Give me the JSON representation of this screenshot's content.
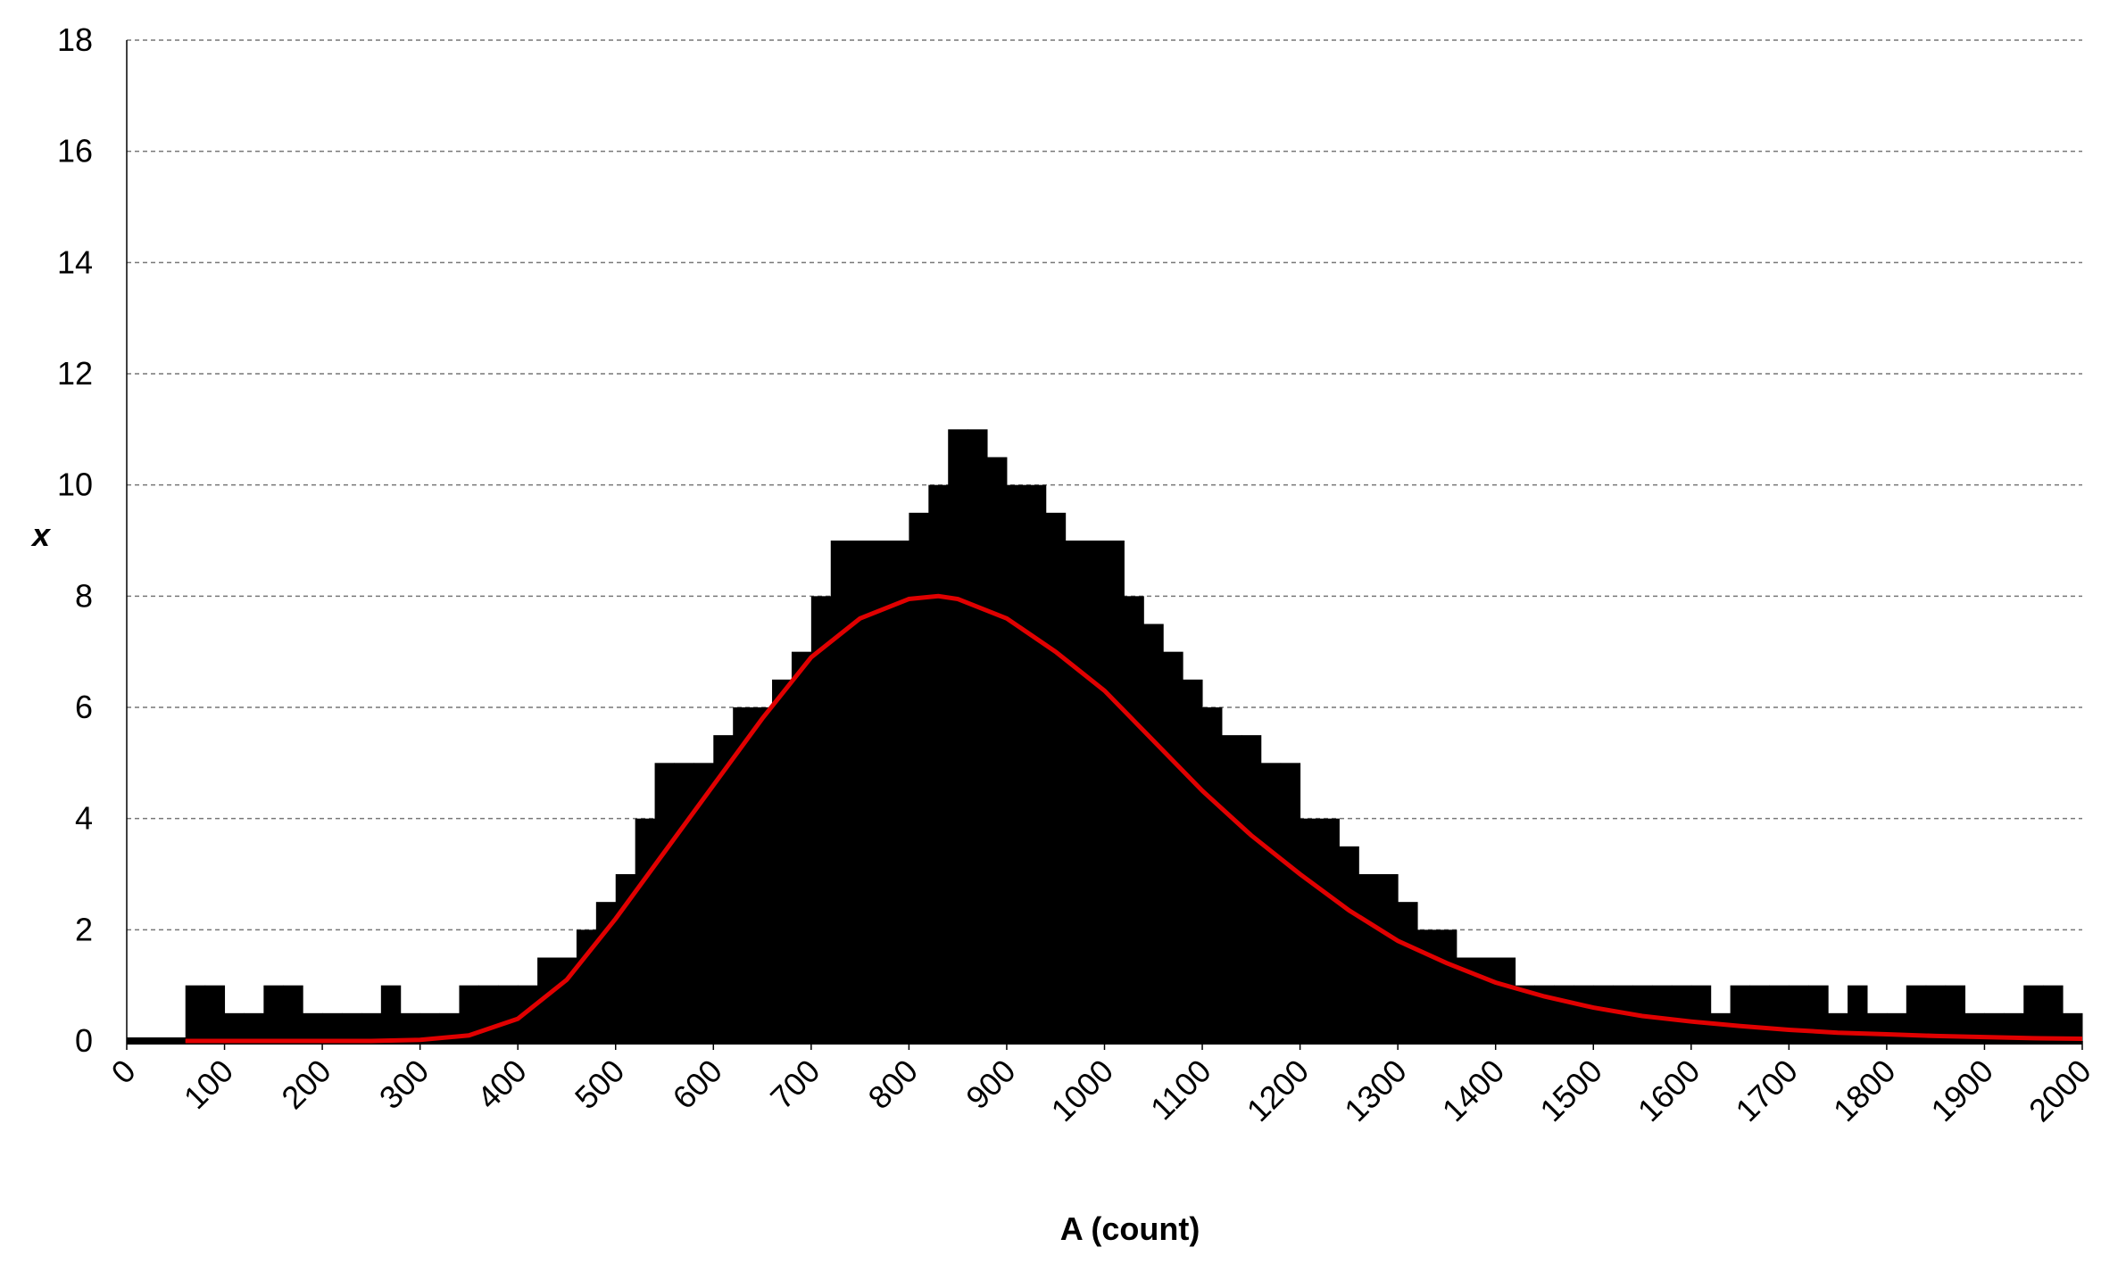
{
  "chart_data": {
    "type": "histogram",
    "xlabel": "A (count)",
    "ylabel": "x",
    "bins": [
      0,
      20,
      40,
      60,
      80,
      100,
      120,
      140,
      160,
      180,
      200,
      220,
      240,
      260,
      280,
      300,
      320,
      340,
      360,
      380,
      400,
      420,
      440,
      460,
      480,
      500,
      520,
      540,
      560,
      580,
      600,
      620,
      640,
      660,
      680,
      700,
      720,
      740,
      760,
      780,
      800,
      820,
      840,
      860,
      880,
      900,
      920,
      940,
      960,
      980,
      1000,
      1020,
      1040,
      1060,
      1080,
      1100,
      1120,
      1140,
      1160,
      1180,
      1200,
      1220,
      1240,
      1260,
      1280,
      1300,
      1320,
      1340,
      1360,
      1380,
      1400,
      1420,
      1440,
      1460,
      1480,
      1500,
      1520,
      1540,
      1560,
      1580,
      1600,
      1620,
      1640,
      1660,
      1680,
      1700,
      1720,
      1740,
      1760,
      1780,
      1800,
      1820,
      1840,
      1860,
      1880,
      1900,
      1920,
      1940,
      1960,
      1980,
      2000
    ],
    "values": [
      0,
      0,
      0,
      1,
      1,
      0.5,
      0.5,
      1,
      1,
      0.5,
      0.5,
      0.5,
      0.5,
      1,
      0.5,
      0.5,
      0.5,
      1,
      1,
      1,
      1,
      1.5,
      1.5,
      2,
      2.5,
      3,
      4,
      5,
      5,
      5,
      5.5,
      6,
      6,
      6.5,
      7,
      8,
      9,
      9,
      9,
      9,
      9.5,
      10,
      11,
      11,
      10.5,
      10,
      10,
      9.5,
      9,
      9,
      9,
      8,
      7.5,
      7,
      6.5,
      6,
      5.5,
      5.5,
      5,
      5,
      4,
      4,
      3.5,
      3,
      3,
      2.5,
      2,
      2,
      1.5,
      1.5,
      1.5,
      1,
      1,
      1,
      1,
      1,
      1,
      1,
      1,
      1,
      1,
      0.5,
      1,
      1,
      1,
      1,
      1,
      0.5,
      1,
      0.5,
      0.5,
      1,
      1,
      1,
      0.5,
      0.5,
      0.5,
      1,
      1,
      0.5
    ],
    "color": "#000000",
    "fit": {
      "color": "#e00000",
      "x": [
        60,
        100,
        150,
        200,
        250,
        300,
        350,
        400,
        450,
        500,
        550,
        600,
        650,
        700,
        750,
        800,
        830,
        850,
        900,
        950,
        1000,
        1050,
        1100,
        1150,
        1200,
        1250,
        1300,
        1350,
        1400,
        1450,
        1500,
        1550,
        1600,
        1650,
        1700,
        1750,
        1800,
        1850,
        1900,
        1950,
        2000
      ],
      "values": [
        0,
        0,
        0,
        0,
        0,
        0.02,
        0.1,
        0.4,
        1.1,
        2.2,
        3.4,
        4.6,
        5.8,
        6.9,
        7.6,
        7.95,
        8,
        7.95,
        7.6,
        7,
        6.3,
        5.4,
        4.5,
        3.7,
        3,
        2.35,
        1.8,
        1.4,
        1.05,
        0.8,
        0.6,
        0.45,
        0.35,
        0.27,
        0.2,
        0.15,
        0.12,
        0.09,
        0.07,
        0.05,
        0.04
      ]
    },
    "xlim": [
      0,
      2000
    ],
    "ylim": [
      0,
      18
    ],
    "xticks": [
      0,
      100,
      200,
      300,
      400,
      500,
      600,
      700,
      800,
      900,
      1000,
      1100,
      1200,
      1300,
      1400,
      1500,
      1600,
      1700,
      1800,
      1900,
      2000
    ],
    "yticks": [
      0,
      2,
      4,
      6,
      8,
      10,
      12,
      14,
      16,
      18
    ],
    "grid": true
  }
}
